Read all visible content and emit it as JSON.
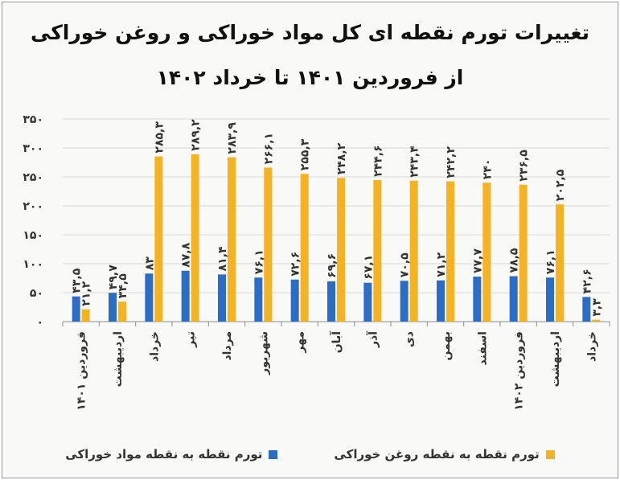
{
  "colors": {
    "food_series": "#2b6cc4",
    "oil_series": "#f5b324",
    "grid": "#d9d9d9",
    "axis": "#8c8c8c"
  },
  "chart_data": {
    "type": "bar",
    "title": "تغییرات تورم نقطه ای کل مواد خوراکی و روغن خوراکی",
    "subtitle": "از فروردین ۱۴۰۱ تا خرداد ۱۴۰۲",
    "categories": [
      "فروردین ۱۴۰۱",
      "اردیبهشت",
      "خرداد",
      "تیر",
      "مرداد",
      "شهریور",
      "مهر",
      "آبان",
      "آذر",
      "دی",
      "بهمن",
      "اسفند",
      "فروردین ۱۴۰۲",
      "اردیبهشت",
      "خرداد"
    ],
    "series": [
      {
        "name": "تورم نقطه به نقطه مواد خوراکی",
        "values": [
          43.5,
          49.7,
          83,
          87.8,
          81.4,
          76.1,
          72.6,
          69.6,
          67.1,
          70.5,
          71.2,
          77.7,
          78.5,
          76.1,
          42.6
        ],
        "labels": [
          "۴۳,۵",
          "۴۹,۷",
          "۸۳",
          "۸۷,۸",
          "۸۱,۴",
          "۷۶,۱",
          "۷۲,۶",
          "۶۹,۶",
          "۶۷,۱",
          "۷۰,۵",
          "۷۱,۲",
          "۷۷,۷",
          "۷۸,۵",
          "۷۶,۱",
          "۴۲,۶"
        ]
      },
      {
        "name": "تورم نقطه به نقطه روغن خوراکی",
        "values": [
          21.2,
          34.5,
          285.3,
          289.2,
          283.9,
          266.1,
          255.3,
          248.2,
          244.6,
          243.4,
          242.2,
          240,
          236.5,
          202.5,
          3.3
        ],
        "labels": [
          "۲۱,۲",
          "۳۴,۵",
          "۲۸۵,۳",
          "۲۸۹,۲",
          "۲۸۳,۹",
          "۲۶۶,۱",
          "۲۵۵,۳",
          "۲۴۸,۲",
          "۲۴۴,۶",
          "۲۴۳,۴",
          "۲۴۲,۲",
          "۲۴۰",
          "۲۳۶,۵",
          "۲۰۲,۵",
          "۳,۳"
        ]
      }
    ],
    "ylim": [
      0,
      350
    ],
    "yticks": [
      0,
      50,
      100,
      150,
      200,
      250,
      300,
      350
    ],
    "ytick_labels": [
      "۰",
      "۵۰",
      "۱۰۰",
      "۱۵۰",
      "۲۰۰",
      "۲۵۰",
      "۳۰۰",
      "۳۵۰"
    ],
    "grid": true,
    "legend": "bottom"
  }
}
